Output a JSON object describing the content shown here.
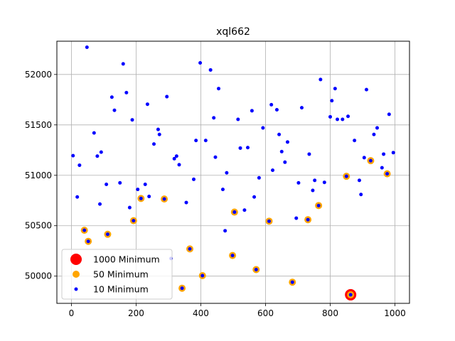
{
  "chart_data": {
    "type": "scatter",
    "title": "xql662",
    "xlabel": "",
    "ylabel": "",
    "xlim": [
      -45,
      1045
    ],
    "ylim": [
      49730,
      52330
    ],
    "x_ticks": [
      0,
      200,
      400,
      600,
      800,
      1000
    ],
    "y_ticks": [
      50000,
      50500,
      51000,
      51500,
      52000
    ],
    "grid": true,
    "legend_position": "lower-left",
    "series": [
      {
        "name": "1000 Minimum",
        "color": "#ff0000",
        "marker_size": "large",
        "points": [
          [
            863,
            49815
          ]
        ]
      },
      {
        "name": "50 Minimum",
        "color": "#ffa500",
        "marker_size": "medium",
        "points": [
          [
            40,
            50455
          ],
          [
            52,
            50345
          ],
          [
            112,
            50415
          ],
          [
            192,
            50550
          ],
          [
            215,
            50770
          ],
          [
            287,
            50765
          ],
          [
            342,
            49880
          ],
          [
            366,
            50270
          ],
          [
            405,
            50005
          ],
          [
            498,
            50205
          ],
          [
            504,
            50635
          ],
          [
            571,
            50065
          ],
          [
            611,
            50545
          ],
          [
            683,
            49940
          ],
          [
            731,
            50560
          ],
          [
            764,
            50700
          ],
          [
            850,
            50990
          ],
          [
            925,
            51145
          ],
          [
            976,
            51015
          ],
          [
            863,
            49815
          ]
        ]
      },
      {
        "name": "10 Minimum",
        "color": "#0000ff",
        "marker_size": "small",
        "points": [
          [
            5,
            51195
          ],
          [
            18,
            50785
          ],
          [
            25,
            51100
          ],
          [
            40,
            50455
          ],
          [
            48,
            52270
          ],
          [
            52,
            50345
          ],
          [
            70,
            51420
          ],
          [
            80,
            51190
          ],
          [
            88,
            50715
          ],
          [
            92,
            51230
          ],
          [
            108,
            50910
          ],
          [
            112,
            50415
          ],
          [
            125,
            51775
          ],
          [
            133,
            51645
          ],
          [
            150,
            50925
          ],
          [
            160,
            52105
          ],
          [
            170,
            51820
          ],
          [
            180,
            50680
          ],
          [
            188,
            51550
          ],
          [
            192,
            50550
          ],
          [
            205,
            50860
          ],
          [
            215,
            50770
          ],
          [
            228,
            50910
          ],
          [
            235,
            51705
          ],
          [
            240,
            50790
          ],
          [
            255,
            51310
          ],
          [
            268,
            51455
          ],
          [
            272,
            51405
          ],
          [
            287,
            50765
          ],
          [
            295,
            51780
          ],
          [
            308,
            50175
          ],
          [
            318,
            51165
          ],
          [
            325,
            51190
          ],
          [
            333,
            51105
          ],
          [
            342,
            49880
          ],
          [
            355,
            50730
          ],
          [
            366,
            50270
          ],
          [
            378,
            50960
          ],
          [
            385,
            51345
          ],
          [
            398,
            52115
          ],
          [
            405,
            50005
          ],
          [
            415,
            51345
          ],
          [
            430,
            52045
          ],
          [
            440,
            51570
          ],
          [
            445,
            51180
          ],
          [
            455,
            51860
          ],
          [
            468,
            50860
          ],
          [
            475,
            50450
          ],
          [
            480,
            51025
          ],
          [
            498,
            50205
          ],
          [
            504,
            50635
          ],
          [
            515,
            51555
          ],
          [
            522,
            51270
          ],
          [
            535,
            50655
          ],
          [
            545,
            51275
          ],
          [
            558,
            51640
          ],
          [
            565,
            50785
          ],
          [
            571,
            50065
          ],
          [
            580,
            50975
          ],
          [
            592,
            51470
          ],
          [
            611,
            50545
          ],
          [
            618,
            51700
          ],
          [
            622,
            51050
          ],
          [
            635,
            51650
          ],
          [
            642,
            51405
          ],
          [
            650,
            51235
          ],
          [
            660,
            51130
          ],
          [
            668,
            51330
          ],
          [
            683,
            49940
          ],
          [
            695,
            50575
          ],
          [
            702,
            50925
          ],
          [
            712,
            51670
          ],
          [
            731,
            50560
          ],
          [
            735,
            51210
          ],
          [
            746,
            50850
          ],
          [
            752,
            50950
          ],
          [
            764,
            50700
          ],
          [
            770,
            51950
          ],
          [
            782,
            50930
          ],
          [
            800,
            51580
          ],
          [
            805,
            51740
          ],
          [
            815,
            51860
          ],
          [
            822,
            51555
          ],
          [
            838,
            51555
          ],
          [
            850,
            50990
          ],
          [
            855,
            51585
          ],
          [
            863,
            49815
          ],
          [
            875,
            51345
          ],
          [
            890,
            50950
          ],
          [
            895,
            50810
          ],
          [
            905,
            51175
          ],
          [
            912,
            51850
          ],
          [
            925,
            51145
          ],
          [
            935,
            51405
          ],
          [
            945,
            51470
          ],
          [
            960,
            51075
          ],
          [
            965,
            51210
          ],
          [
            976,
            51015
          ],
          [
            982,
            51605
          ],
          [
            995,
            51225
          ]
        ]
      }
    ]
  }
}
